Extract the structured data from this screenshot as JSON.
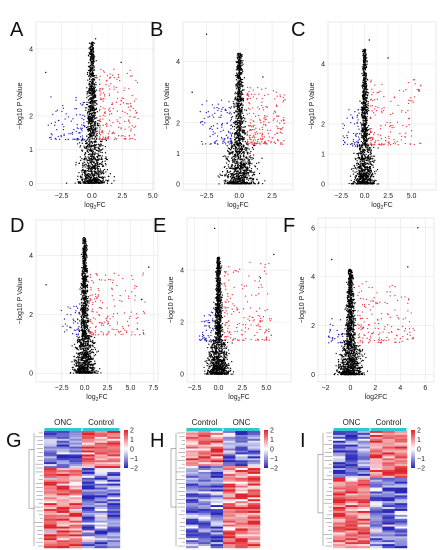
{
  "chart_data": [
    {
      "type": "scatter",
      "panel_letter": "A",
      "xlabel_base": "log",
      "xlabel_sub": "2",
      "xlabel_tail": "FC",
      "ylabel": "−log10 P Value",
      "xlim": [
        -4.6,
        5.1
      ],
      "ylim": [
        -0.2,
        4.8
      ],
      "x_ticks": [
        -2.5,
        0.0,
        2.5,
        5.0
      ],
      "x_tick_labels": [
        "−2.5",
        "0.0",
        "2.5",
        "5.0"
      ],
      "y_ticks": [
        0,
        1,
        2,
        4
      ],
      "y_tick_labels": [
        "0",
        "1",
        "2",
        "4"
      ],
      "grid": true,
      "series": [
        {
          "role": "not-significant",
          "color": "#000000",
          "count": 1400,
          "x_spread": 0.55,
          "y_peak": 4.2
        },
        {
          "role": "down-regulated",
          "color": "#1a1ab8",
          "count": 90,
          "x_range": [
            -3.6,
            -0.6
          ],
          "y_range": [
            1.3,
            2.6
          ]
        },
        {
          "role": "up-regulated",
          "color": "#e8343a",
          "count": 200,
          "x_range": [
            0.6,
            3.8
          ],
          "y_range": [
            1.3,
            3.4
          ]
        }
      ],
      "outliers": [
        {
          "x": 0.3,
          "y": 4.3
        },
        {
          "x": 2.4,
          "y": 3.6
        },
        {
          "x": -3.8,
          "y": 3.3
        }
      ]
    },
    {
      "type": "scatter",
      "panel_letter": "B",
      "xlabel_base": "log",
      "xlabel_sub": "2",
      "xlabel_tail": "FC",
      "ylabel": "−log10 P Value",
      "xlim": [
        -4.3,
        4.1
      ],
      "ylim": [
        -0.2,
        5.3
      ],
      "x_ticks": [
        -2.5,
        0.0,
        2.5
      ],
      "x_tick_labels": [
        "−2.5",
        "0.0",
        "2.5"
      ],
      "y_ticks": [
        0,
        1,
        2,
        4
      ],
      "y_tick_labels": [
        "0",
        "1",
        "2",
        "4"
      ],
      "grid": true,
      "series": [
        {
          "role": "not-significant",
          "color": "#000000",
          "count": 1400,
          "x_spread": 0.55,
          "y_peak": 4.3
        },
        {
          "role": "down-regulated",
          "color": "#1a1ab8",
          "count": 110,
          "x_range": [
            -3.0,
            -0.6
          ],
          "y_range": [
            1.3,
            2.8
          ]
        },
        {
          "role": "up-regulated",
          "color": "#e8343a",
          "count": 210,
          "x_range": [
            0.6,
            3.5
          ],
          "y_range": [
            1.3,
            3.2
          ]
        }
      ],
      "outliers": [
        {
          "x": -2.5,
          "y": 4.9
        },
        {
          "x": 1.8,
          "y": 3.5
        },
        {
          "x": -3.6,
          "y": 3.0
        }
      ]
    },
    {
      "type": "scatter",
      "panel_letter": "C",
      "xlabel_base": "log",
      "xlabel_sub": "2",
      "xlabel_tail": "FC",
      "ylabel": "−log10 P Value",
      "xlim": [
        -3.9,
        7.6
      ],
      "ylim": [
        -0.2,
        5.4
      ],
      "x_ticks": [
        -2.5,
        0.0,
        2.5,
        5.0
      ],
      "x_tick_labels": [
        "−2.5",
        "0.0",
        "2.5",
        "5.0"
      ],
      "y_ticks": [
        0,
        1,
        2,
        4
      ],
      "y_tick_labels": [
        "0",
        "1",
        "2",
        "4"
      ],
      "grid": true,
      "series": [
        {
          "role": "not-significant",
          "color": "#000000",
          "count": 1300,
          "x_spread": 0.5,
          "y_peak": 4.5
        },
        {
          "role": "down-regulated",
          "color": "#1a1ab8",
          "count": 50,
          "x_range": [
            -2.4,
            -0.6
          ],
          "y_range": [
            1.3,
            2.5
          ]
        },
        {
          "role": "up-regulated",
          "color": "#e8343a",
          "count": 150,
          "x_range": [
            0.6,
            6.0
          ],
          "y_range": [
            1.3,
            3.5
          ]
        }
      ],
      "outliers": [
        {
          "x": 0.5,
          "y": 4.8
        },
        {
          "x": 5.8,
          "y": 3.1
        },
        {
          "x": 2.5,
          "y": 4.2
        }
      ]
    },
    {
      "type": "scatter",
      "panel_letter": "D",
      "xlabel_base": "log",
      "xlabel_sub": "2",
      "xlabel_tail": "FC",
      "ylabel": "−log10 P Value",
      "xlim": [
        -5.3,
        8.0
      ],
      "ylim": [
        -0.3,
        5.2
      ],
      "x_ticks": [
        -2.5,
        0.0,
        2.5,
        5.0,
        7.5
      ],
      "x_tick_labels": [
        "−2.5",
        "0.0",
        "2.5",
        "5.0",
        "7.5"
      ],
      "y_ticks": [
        0,
        2,
        4
      ],
      "y_tick_labels": [
        "0",
        "2",
        "4"
      ],
      "grid": true,
      "series": [
        {
          "role": "not-significant",
          "color": "#000000",
          "count": 1500,
          "x_spread": 0.55,
          "y_peak": 4.6
        },
        {
          "role": "down-regulated",
          "color": "#1a1ab8",
          "count": 40,
          "x_range": [
            -2.6,
            -0.6
          ],
          "y_range": [
            1.3,
            2.3
          ]
        },
        {
          "role": "up-regulated",
          "color": "#e8343a",
          "count": 160,
          "x_range": [
            0.6,
            6.6
          ],
          "y_range": [
            1.3,
            3.4
          ]
        }
      ],
      "outliers": [
        {
          "x": -4.2,
          "y": 3.0
        },
        {
          "x": 7.0,
          "y": 3.6
        },
        {
          "x": 6.2,
          "y": 2.5
        }
      ]
    },
    {
      "type": "scatter",
      "panel_letter": "E",
      "xlabel_base": "log",
      "xlabel_sub": "2",
      "xlabel_tail": "FC",
      "ylabel": "−log10 P Value",
      "xlim": [
        -3.3,
        7.6
      ],
      "ylim": [
        -0.3,
        6.0
      ],
      "x_ticks": [
        -2.5,
        0.0,
        2.5,
        5.0
      ],
      "x_tick_labels": [
        "−2.5",
        "0.0",
        "2.5",
        "5.0"
      ],
      "y_ticks": [
        0,
        2,
        4
      ],
      "y_tick_labels": [
        "0",
        "2",
        "4"
      ],
      "grid": true,
      "series": [
        {
          "role": "not-significant",
          "color": "#000000",
          "count": 1500,
          "x_spread": 0.5,
          "y_peak": 4.5
        },
        {
          "role": "down-regulated",
          "color": "#1a1ab8",
          "count": 45,
          "x_range": [
            -2.0,
            -0.6
          ],
          "y_range": [
            1.3,
            2.4
          ]
        },
        {
          "role": "up-regulated",
          "color": "#e8343a",
          "count": 170,
          "x_range": [
            0.6,
            5.6
          ],
          "y_range": [
            1.3,
            4.3
          ]
        }
      ],
      "outliers": [
        {
          "x": -0.4,
          "y": 5.6
        },
        {
          "x": 5.8,
          "y": 4.6
        },
        {
          "x": 4.4,
          "y": 3.7
        }
      ]
    },
    {
      "type": "scatter",
      "panel_letter": "F",
      "xlabel_base": "log2FC",
      "xlabel_sub": "",
      "xlabel_tail": "",
      "ylabel": "−log10 P Value",
      "xlim": [
        -2.6,
        6.7
      ],
      "ylim": [
        -0.3,
        6.4
      ],
      "x_ticks": [
        -2,
        0,
        2,
        4,
        6
      ],
      "x_tick_labels": [
        "−2",
        "0",
        "2",
        "4",
        "6"
      ],
      "y_ticks": [
        0,
        2,
        4,
        6
      ],
      "y_tick_labels": [
        "0",
        "2",
        "4",
        "6"
      ],
      "grid": true,
      "series": [
        {
          "role": "not-significant",
          "color": "#000000",
          "count": 1400,
          "x_spread": 0.45,
          "y_peak": 4.3
        },
        {
          "role": "down-regulated",
          "color": "#1a1ab8",
          "count": 30,
          "x_range": [
            -1.8,
            -0.6
          ],
          "y_range": [
            1.3,
            2.3
          ]
        },
        {
          "role": "up-regulated",
          "color": "#e8343a",
          "count": 160,
          "x_range": [
            0.6,
            5.2
          ],
          "y_range": [
            1.3,
            3.8
          ]
        }
      ],
      "outliers": [
        {
          "x": 5.4,
          "y": 6.0
        },
        {
          "x": 4.6,
          "y": 4.4
        },
        {
          "x": -1.5,
          "y": 4.7
        }
      ]
    },
    {
      "type": "heatmap",
      "panel_letter": "G",
      "groups": [
        {
          "label": "ONC",
          "columns": 3
        },
        {
          "label": "Control",
          "columns": 3
        }
      ],
      "group_bar_color": "#33c6d1",
      "rows": 60,
      "pattern": "split",
      "split_fraction": 0.32,
      "colorbar_ticks": [
        2,
        1,
        0,
        -1,
        -2
      ],
      "colorbar_tick_labels": [
        "2",
        "1",
        "0",
        "−1",
        "−2"
      ],
      "color_low": "#2727b8",
      "color_mid": "#ffffff",
      "color_high": "#e0222a"
    },
    {
      "type": "heatmap",
      "panel_letter": "H",
      "groups": [
        {
          "label": "Control",
          "columns": 3
        },
        {
          "label": "ONC",
          "columns": 3
        }
      ],
      "group_bar_color": "#33c6d1",
      "rows": 60,
      "pattern": "split",
      "split_fraction": 0.3,
      "colorbar_ticks": [
        2,
        1,
        0,
        -1,
        -2
      ],
      "colorbar_tick_labels": [
        "2",
        "1",
        "0",
        "−1",
        "−2"
      ],
      "color_low": "#2727b8",
      "color_mid": "#ffffff",
      "color_high": "#e0222a"
    },
    {
      "type": "heatmap",
      "panel_letter": "I",
      "groups": [
        {
          "label": "ONC",
          "columns": 3
        },
        {
          "label": "Control",
          "columns": 3
        }
      ],
      "group_bar_color": "#33c6d1",
      "rows": 60,
      "pattern": "split",
      "split_fraction": 0.4,
      "colorbar_ticks": [
        2,
        1,
        0,
        -1,
        -2
      ],
      "colorbar_tick_labels": [
        "2",
        "1",
        "0",
        "−1",
        "−2"
      ],
      "color_low": "#2727b8",
      "color_mid": "#ffffff",
      "color_high": "#e0222a"
    }
  ]
}
